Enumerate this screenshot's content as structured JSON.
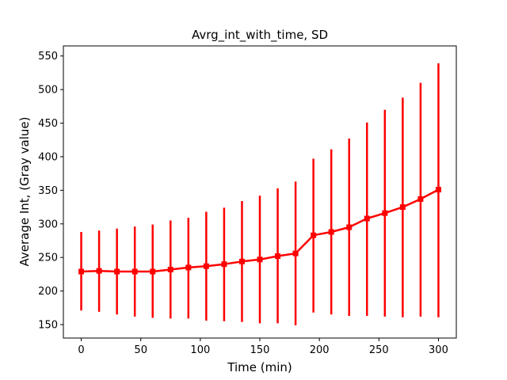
{
  "chart_data": {
    "type": "line",
    "title": "Avrg_int_with_time, SD",
    "xlabel": "Time (min)",
    "ylabel": "Average Int, (Gray value)",
    "xlim": [
      -15,
      315
    ],
    "ylim": [
      130,
      565
    ],
    "xticks": [
      0,
      50,
      100,
      150,
      200,
      250,
      300
    ],
    "yticks": [
      150,
      200,
      250,
      300,
      350,
      400,
      450,
      500,
      550
    ],
    "grid": false,
    "color": "#ff0000",
    "marker": "square",
    "series": [
      {
        "x": [
          0,
          15,
          30,
          45,
          60,
          75,
          90,
          105,
          120,
          135,
          150,
          165,
          180,
          195,
          210,
          225,
          240,
          255,
          270,
          285,
          300
        ],
        "y": [
          229,
          230,
          229,
          229,
          229,
          232,
          235,
          237,
          240,
          244,
          247,
          252,
          256,
          283,
          288,
          295,
          308,
          316,
          325,
          337,
          351
        ],
        "lower": [
          171,
          169,
          165,
          162,
          160,
          159,
          159,
          156,
          155,
          154,
          152,
          152,
          149,
          168,
          165,
          163,
          163,
          162,
          161,
          162,
          161
        ],
        "upper": [
          288,
          290,
          293,
          296,
          299,
          305,
          309,
          318,
          324,
          334,
          342,
          353,
          363,
          397,
          411,
          427,
          451,
          470,
          488,
          510,
          539
        ]
      }
    ]
  }
}
